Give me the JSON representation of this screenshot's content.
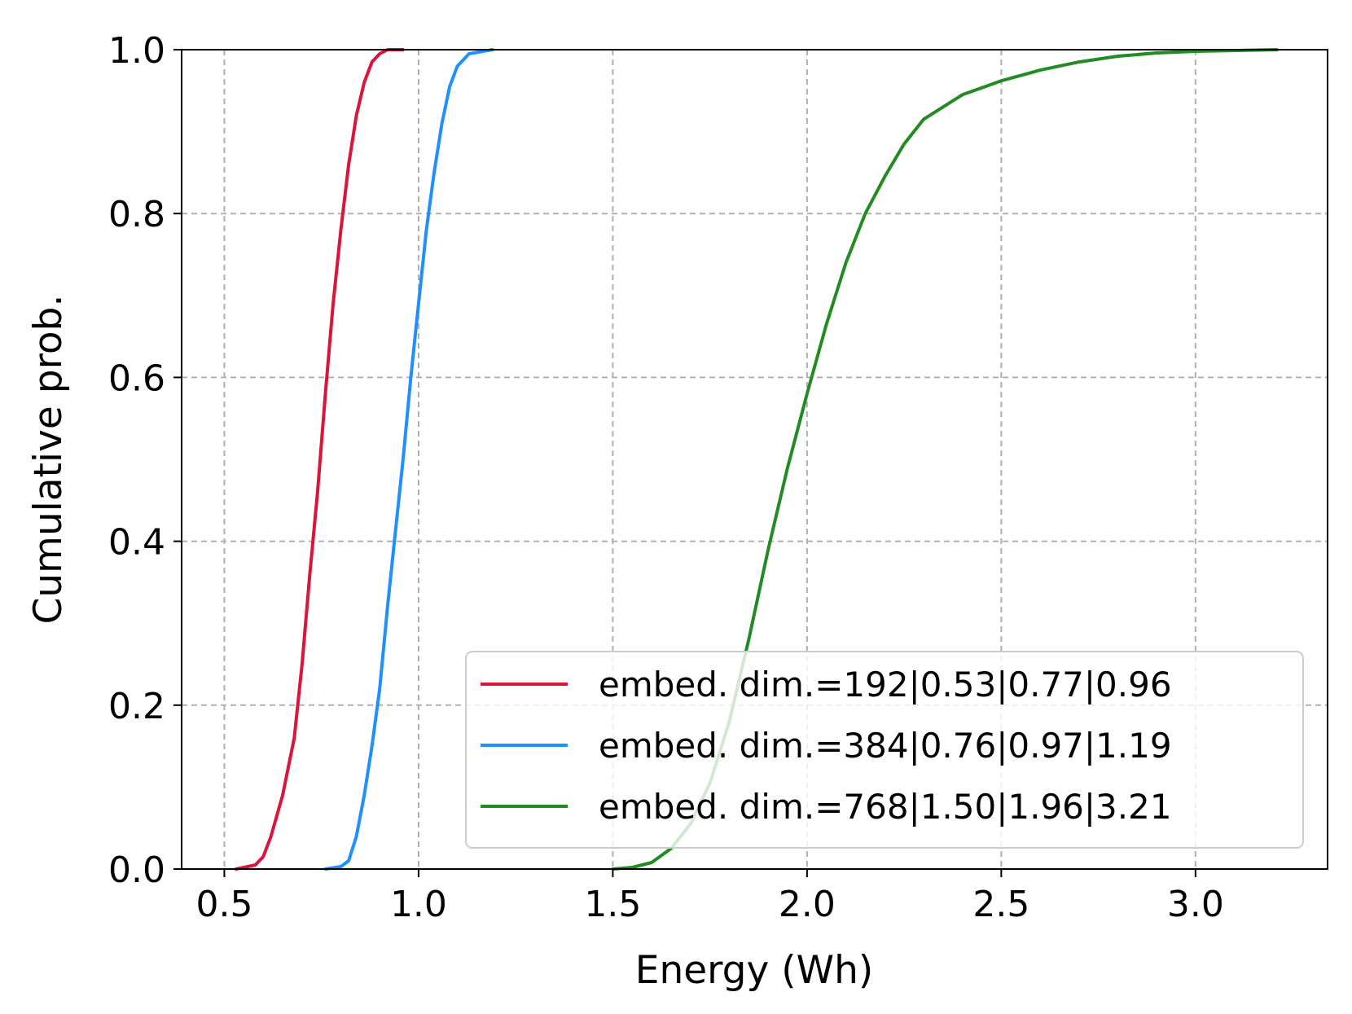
{
  "chart_data": {
    "type": "line",
    "title": "",
    "xlabel": "Energy (Wh)",
    "ylabel": "Cumulative prob.",
    "xlim": [
      0.39,
      3.34
    ],
    "ylim": [
      0.0,
      1.0
    ],
    "xticks": [
      {
        "value": 0.5,
        "label": "0.5"
      },
      {
        "value": 1.0,
        "label": "1.0"
      },
      {
        "value": 1.5,
        "label": "1.5"
      },
      {
        "value": 2.0,
        "label": "2.0"
      },
      {
        "value": 2.5,
        "label": "2.5"
      },
      {
        "value": 3.0,
        "label": "3.0"
      }
    ],
    "yticks": [
      {
        "value": 0.0,
        "label": "0.0"
      },
      {
        "value": 0.2,
        "label": "0.2"
      },
      {
        "value": 0.4,
        "label": "0.4"
      },
      {
        "value": 0.6,
        "label": "0.6"
      },
      {
        "value": 0.8,
        "label": "0.8"
      },
      {
        "value": 1.0,
        "label": "1.0"
      }
    ],
    "grid": true,
    "legend_position": "bottom-right",
    "series": [
      {
        "name": "embed. dim.=192|0.53|0.77|0.96",
        "color": "#dc143c",
        "points": [
          [
            0.53,
            0.0
          ],
          [
            0.58,
            0.005
          ],
          [
            0.6,
            0.015
          ],
          [
            0.62,
            0.04
          ],
          [
            0.65,
            0.09
          ],
          [
            0.68,
            0.16
          ],
          [
            0.7,
            0.25
          ],
          [
            0.72,
            0.36
          ],
          [
            0.74,
            0.46
          ],
          [
            0.76,
            0.58
          ],
          [
            0.78,
            0.69
          ],
          [
            0.8,
            0.78
          ],
          [
            0.82,
            0.86
          ],
          [
            0.84,
            0.92
          ],
          [
            0.86,
            0.96
          ],
          [
            0.88,
            0.985
          ],
          [
            0.9,
            0.995
          ],
          [
            0.92,
            1.0
          ],
          [
            0.96,
            1.0
          ]
        ]
      },
      {
        "name": "embed. dim.=384|0.76|0.97|1.19",
        "color": "#1e90ff",
        "points": [
          [
            0.76,
            0.0
          ],
          [
            0.8,
            0.003
          ],
          [
            0.82,
            0.01
          ],
          [
            0.84,
            0.04
          ],
          [
            0.86,
            0.09
          ],
          [
            0.88,
            0.15
          ],
          [
            0.9,
            0.22
          ],
          [
            0.92,
            0.32
          ],
          [
            0.94,
            0.41
          ],
          [
            0.96,
            0.5
          ],
          [
            0.98,
            0.6
          ],
          [
            1.0,
            0.69
          ],
          [
            1.02,
            0.78
          ],
          [
            1.04,
            0.85
          ],
          [
            1.06,
            0.91
          ],
          [
            1.08,
            0.955
          ],
          [
            1.1,
            0.98
          ],
          [
            1.13,
            0.995
          ],
          [
            1.19,
            1.0
          ]
        ]
      },
      {
        "name": "embed. dim.=768|1.50|1.96|3.21",
        "color": "#228b22",
        "points": [
          [
            1.5,
            0.0
          ],
          [
            1.55,
            0.002
          ],
          [
            1.6,
            0.008
          ],
          [
            1.65,
            0.025
          ],
          [
            1.7,
            0.055
          ],
          [
            1.75,
            0.105
          ],
          [
            1.8,
            0.18
          ],
          [
            1.85,
            0.28
          ],
          [
            1.9,
            0.39
          ],
          [
            1.95,
            0.49
          ],
          [
            2.0,
            0.58
          ],
          [
            2.05,
            0.665
          ],
          [
            2.1,
            0.74
          ],
          [
            2.15,
            0.8
          ],
          [
            2.2,
            0.845
          ],
          [
            2.25,
            0.885
          ],
          [
            2.3,
            0.915
          ],
          [
            2.4,
            0.945
          ],
          [
            2.5,
            0.962
          ],
          [
            2.6,
            0.975
          ],
          [
            2.7,
            0.985
          ],
          [
            2.8,
            0.992
          ],
          [
            2.9,
            0.996
          ],
          [
            3.0,
            0.998
          ],
          [
            3.21,
            1.0
          ]
        ]
      }
    ]
  }
}
